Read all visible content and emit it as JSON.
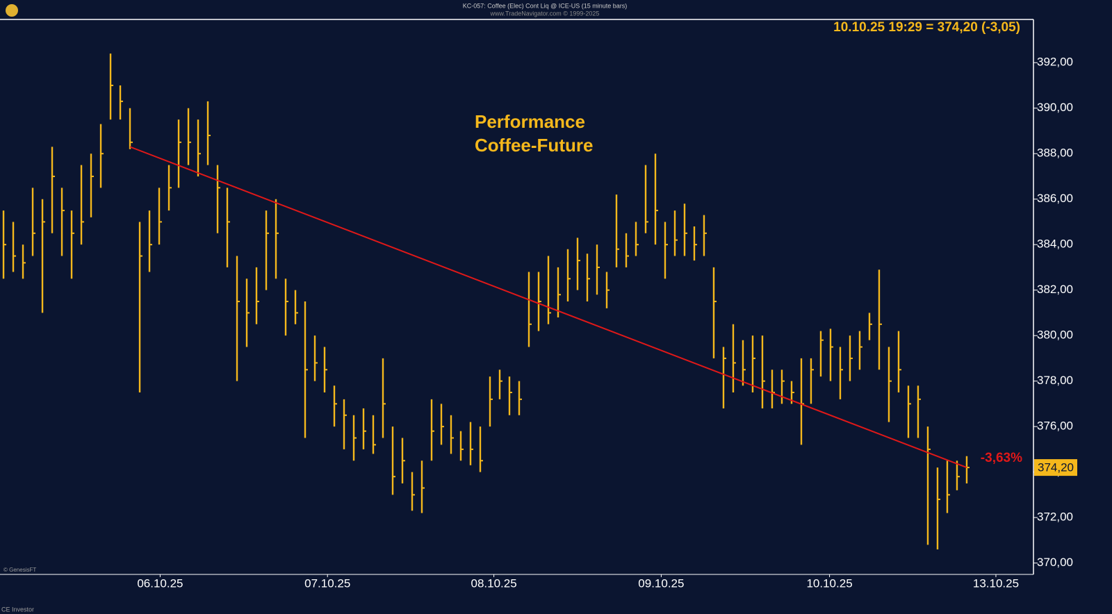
{
  "chart_data": {
    "type": "ohlc",
    "source_line": "KC-057:  Coffee (Elec) Cont Liq @ ICE-US  (15 minute bars)",
    "copyright_line": "www.TradeNavigator.com © 1999-2025",
    "info_line": "10.10.25 19:29 = 374,20 (-3,05)",
    "title": "Performance",
    "subtitle": "Coffee-Future",
    "performance_label": "-3,63%",
    "price_tag": {
      "value": 374.2,
      "label": "374,20"
    },
    "footer_left": "© GenesisFT",
    "footer_bottom": "CE Investor",
    "color": "#f5b81c",
    "trend_color": "#e01818",
    "high": [
      385.5,
      385,
      384,
      386.5,
      386,
      388.3,
      386.5,
      385.5,
      387.5,
      388,
      389.3,
      392.4,
      391,
      390,
      385,
      385.5,
      386.5,
      387.5,
      389.5,
      390,
      389.5,
      390.3,
      387.5,
      386.5,
      383.5,
      382.5,
      383,
      385.5,
      386,
      382.5,
      382,
      381.5,
      380,
      379.5,
      377.8,
      377.2,
      376.5,
      376.8,
      376.5,
      379,
      376,
      375.5,
      374,
      374.5,
      377.2,
      377,
      376.5,
      375.8,
      376.2,
      376,
      378.2,
      378.5,
      378.2,
      378,
      382.8,
      382.8,
      383.5,
      383,
      383.8,
      384.3,
      383.6,
      384,
      382.8,
      386.2,
      384.5,
      385,
      387.5,
      388,
      385,
      385.5,
      385.8,
      384.8,
      385.3,
      383,
      379.5,
      380.5,
      379.8,
      380,
      380,
      378.5,
      378.5,
      378,
      379,
      379,
      380.2,
      380.3,
      379.5,
      380,
      380.2,
      381,
      382.9,
      379.5,
      380.2,
      377.8,
      377.8,
      376,
      374.2,
      374.5,
      374.5,
      374.7
    ],
    "low": [
      382.5,
      382.8,
      382.5,
      383.5,
      381,
      384.5,
      383.5,
      382.5,
      384,
      385.2,
      386.5,
      389.5,
      389.5,
      388.2,
      377.5,
      382.8,
      384,
      385.5,
      386.5,
      387.5,
      387,
      387.5,
      384.5,
      383,
      378,
      379.5,
      380.5,
      382,
      382.5,
      380,
      380.5,
      375.5,
      378,
      377.5,
      376,
      375,
      374.5,
      375,
      374.8,
      375.5,
      373,
      373.5,
      372.3,
      372.2,
      374.5,
      375.2,
      374.8,
      374.5,
      374.3,
      374,
      376,
      377.2,
      376.5,
      376.5,
      379.5,
      380.2,
      380.5,
      380.8,
      381.5,
      382,
      381.5,
      381.8,
      381.2,
      383,
      383,
      383.5,
      384.5,
      384,
      382.5,
      383.5,
      383.5,
      383.3,
      383.5,
      379,
      376.8,
      377.5,
      377.8,
      377.5,
      376.8,
      376.8,
      377,
      377,
      375.2,
      377,
      378.2,
      378,
      377.2,
      378,
      378.5,
      379.8,
      378.5,
      376.2,
      377.5,
      375.5,
      375.5,
      370.8,
      370.6,
      372.2,
      373.2,
      373.5
    ],
    "close": [
      384,
      383.5,
      383.2,
      384.5,
      385,
      387,
      385.5,
      384.5,
      385,
      387,
      388,
      391,
      390.3,
      388.5,
      383.5,
      384,
      385,
      386.5,
      388.5,
      388.5,
      388,
      388.8,
      386.5,
      385,
      381.5,
      381,
      381.5,
      384.5,
      384.5,
      381.5,
      381,
      378.5,
      378.8,
      378.5,
      377,
      376.5,
      375.5,
      375.8,
      375.2,
      377,
      373.8,
      374.5,
      373,
      373.3,
      375.8,
      376,
      375.5,
      375,
      375,
      374.5,
      377.2,
      378,
      377.5,
      377.2,
      380.5,
      381.5,
      381,
      381.8,
      382.5,
      383.3,
      382.5,
      383,
      382,
      383.8,
      383.5,
      384,
      385,
      385.5,
      384,
      384.2,
      384.5,
      384,
      384.5,
      381.5,
      379,
      378.8,
      378.5,
      379,
      378,
      377.5,
      378,
      377.5,
      377,
      378.5,
      379.8,
      379.5,
      378.5,
      379,
      379.5,
      380.5,
      380.5,
      378,
      378.5,
      377,
      377.2,
      375,
      372.8,
      373,
      373.8,
      374.2
    ],
    "trendline": {
      "x": [
        13,
        99
      ],
      "y": [
        388.3,
        374.2
      ]
    },
    "xlim": [
      -0.36,
      105.86
    ],
    "ylim": [
      369.5,
      393.9
    ],
    "xticks": [
      {
        "value": 16.1,
        "label": "06.10.25"
      },
      {
        "value": 33.3,
        "label": "07.10.25"
      },
      {
        "value": 50.4,
        "label": "08.10.25"
      },
      {
        "value": 67.6,
        "label": "09.10.25"
      },
      {
        "value": 84.9,
        "label": "10.10.25"
      },
      {
        "value": 102.0,
        "label": "13.10.25"
      }
    ],
    "yticks": [
      {
        "value": 370,
        "label": "370,00"
      },
      {
        "value": 372,
        "label": "372,00"
      },
      {
        "value": 374,
        "label": "374,00"
      },
      {
        "value": 376,
        "label": "376,00"
      },
      {
        "value": 378,
        "label": "378,00"
      },
      {
        "value": 380,
        "label": "380,00"
      },
      {
        "value": 382,
        "label": "382,00"
      },
      {
        "value": 384,
        "label": "384,00"
      },
      {
        "value": 386,
        "label": "386,00"
      },
      {
        "value": 388,
        "label": "388,00"
      },
      {
        "value": 390,
        "label": "390,00"
      },
      {
        "value": 392,
        "label": "392,00"
      }
    ]
  }
}
